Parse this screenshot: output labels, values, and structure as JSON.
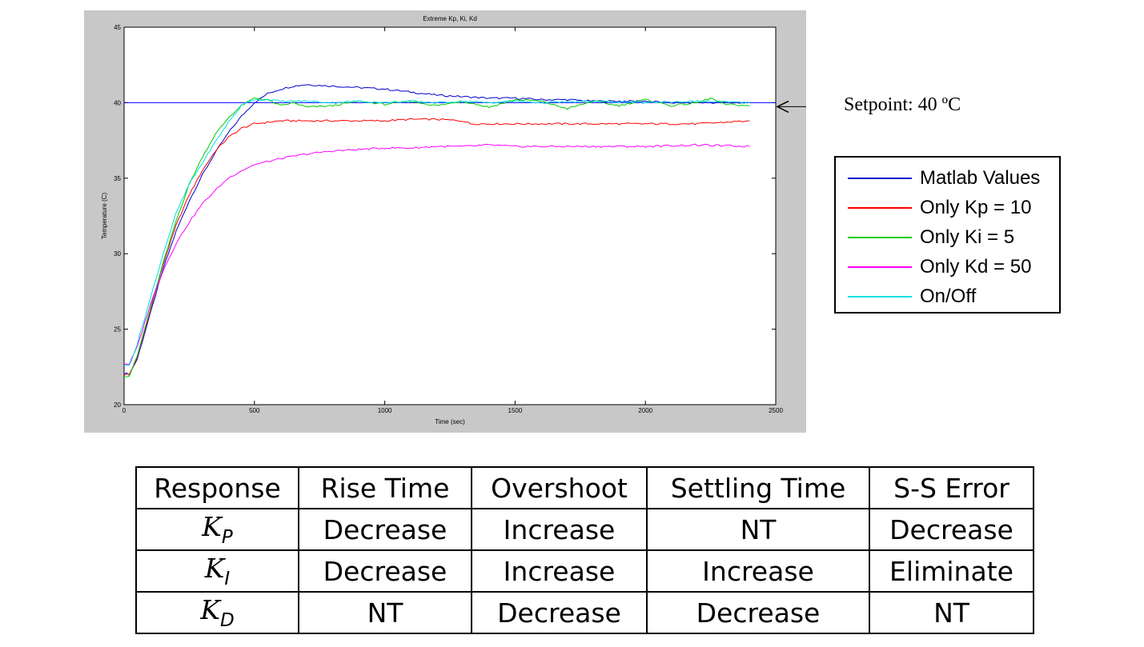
{
  "chart_data": {
    "type": "line",
    "title": "Extreme Kp, Ki, Kd",
    "xlabel": "Time (sec)",
    "ylabel": "Temperature (C)",
    "xlim": [
      0,
      2500
    ],
    "ylim": [
      20,
      45
    ],
    "xticks": [
      "0",
      "500",
      "1000",
      "1500",
      "2000",
      "2500"
    ],
    "yticks": [
      "20",
      "25",
      "30",
      "35",
      "40",
      "45"
    ],
    "grid": false,
    "legend_position": "right, outside plot",
    "setpoint": {
      "value": 40,
      "color": "#0000ff"
    },
    "series": [
      {
        "name": "Matlab Values",
        "color": "#0000cc",
        "x": [
          0,
          20,
          50,
          100,
          150,
          200,
          250,
          300,
          350,
          400,
          450,
          500,
          550,
          600,
          650,
          700,
          800,
          900,
          1000,
          1100,
          1200,
          1300,
          1400,
          1500,
          1600,
          1700,
          1800,
          1900,
          2000,
          2100,
          2200,
          2300,
          2400
        ],
        "y": [
          22.1,
          22.0,
          23.0,
          26.0,
          29.0,
          31.5,
          33.5,
          35.2,
          36.7,
          38.0,
          39.1,
          40.0,
          40.6,
          40.9,
          41.1,
          41.2,
          41.1,
          41.0,
          40.9,
          40.7,
          40.5,
          40.4,
          40.3,
          40.3,
          40.2,
          40.2,
          40.1,
          40.1,
          40.1,
          40.0,
          40.0,
          40.0,
          40.0
        ]
      },
      {
        "name": "Only Kp = 10",
        "color": "#ff0000",
        "x": [
          0,
          20,
          50,
          100,
          150,
          200,
          250,
          300,
          350,
          400,
          450,
          500,
          550,
          600,
          700,
          800,
          900,
          1000,
          1100,
          1200,
          1300,
          1330,
          1400,
          1600,
          1800,
          2000,
          2200,
          2400
        ],
        "y": [
          22.0,
          22.0,
          23.1,
          26.2,
          29.3,
          31.9,
          33.9,
          35.5,
          36.8,
          37.7,
          38.3,
          38.6,
          38.7,
          38.8,
          38.8,
          38.8,
          38.8,
          38.8,
          38.9,
          38.9,
          38.8,
          38.6,
          38.6,
          38.6,
          38.6,
          38.6,
          38.6,
          38.8
        ]
      },
      {
        "name": "Only Ki = 5",
        "color": "#00cc00",
        "x": [
          0,
          20,
          50,
          100,
          150,
          200,
          250,
          300,
          350,
          400,
          450,
          500,
          550,
          600,
          650,
          700,
          800,
          900,
          1000,
          1100,
          1200,
          1300,
          1400,
          1500,
          1600,
          1700,
          1800,
          1900,
          2000,
          2100,
          2200,
          2250,
          2300,
          2400
        ],
        "y": [
          21.9,
          21.9,
          23.2,
          26.3,
          29.4,
          32.2,
          34.6,
          36.4,
          37.9,
          39.0,
          39.8,
          40.3,
          40.2,
          39.8,
          40.0,
          39.7,
          39.8,
          40.1,
          39.9,
          40.1,
          39.8,
          40.1,
          39.7,
          40.2,
          40.1,
          39.6,
          40.1,
          39.8,
          40.2,
          39.8,
          40.0,
          40.3,
          39.9,
          39.8
        ]
      },
      {
        "name": "Only Kd = 50",
        "color": "#ff00ff",
        "x": [
          0,
          20,
          50,
          100,
          150,
          200,
          250,
          300,
          350,
          400,
          450,
          500,
          550,
          600,
          700,
          800,
          900,
          1000,
          1100,
          1200,
          1300,
          1400,
          1500,
          1600,
          1800,
          2000,
          2200,
          2400
        ],
        "y": [
          22.7,
          22.7,
          23.8,
          26.6,
          28.9,
          30.7,
          32.1,
          33.3,
          34.2,
          35.0,
          35.5,
          35.9,
          36.1,
          36.3,
          36.6,
          36.8,
          36.9,
          37.0,
          37.0,
          37.1,
          37.1,
          37.2,
          37.1,
          37.1,
          37.1,
          37.1,
          37.2,
          37.1
        ]
      },
      {
        "name": "On/Off",
        "color": "#00e0e0",
        "x": [
          0,
          20,
          50,
          100,
          150,
          200,
          250,
          300,
          350,
          400,
          450,
          480,
          500,
          550,
          600,
          700,
          800,
          900,
          1000,
          1100,
          1200,
          1300,
          1400,
          1500,
          1600,
          1800,
          2000,
          2200,
          2400
        ],
        "y": [
          22.6,
          22.6,
          24.0,
          27.0,
          30.0,
          32.7,
          34.6,
          36.0,
          37.4,
          38.7,
          39.8,
          40.1,
          40.2,
          40.2,
          40.1,
          40.1,
          40.0,
          40.1,
          40.0,
          40.1,
          40.0,
          40.1,
          40.0,
          40.1,
          40.0,
          40.1,
          40.0,
          40.1,
          40.0
        ]
      }
    ]
  },
  "annotation": {
    "setpoint_label": "Setpoint: 40 ºC"
  },
  "table": {
    "headers": [
      "Response",
      "Rise Time",
      "Overshoot",
      "Settling Time",
      "S-S Error"
    ],
    "rows": [
      {
        "k": "K",
        "sub": "P",
        "cells": [
          "Decrease",
          "Increase",
          "NT",
          "Decrease"
        ]
      },
      {
        "k": "K",
        "sub": "I",
        "cells": [
          "Decrease",
          "Increase",
          "Increase",
          "Eliminate"
        ]
      },
      {
        "k": "K",
        "sub": "D",
        "cells": [
          "NT",
          "Decrease",
          "Decrease",
          "NT"
        ]
      }
    ]
  }
}
